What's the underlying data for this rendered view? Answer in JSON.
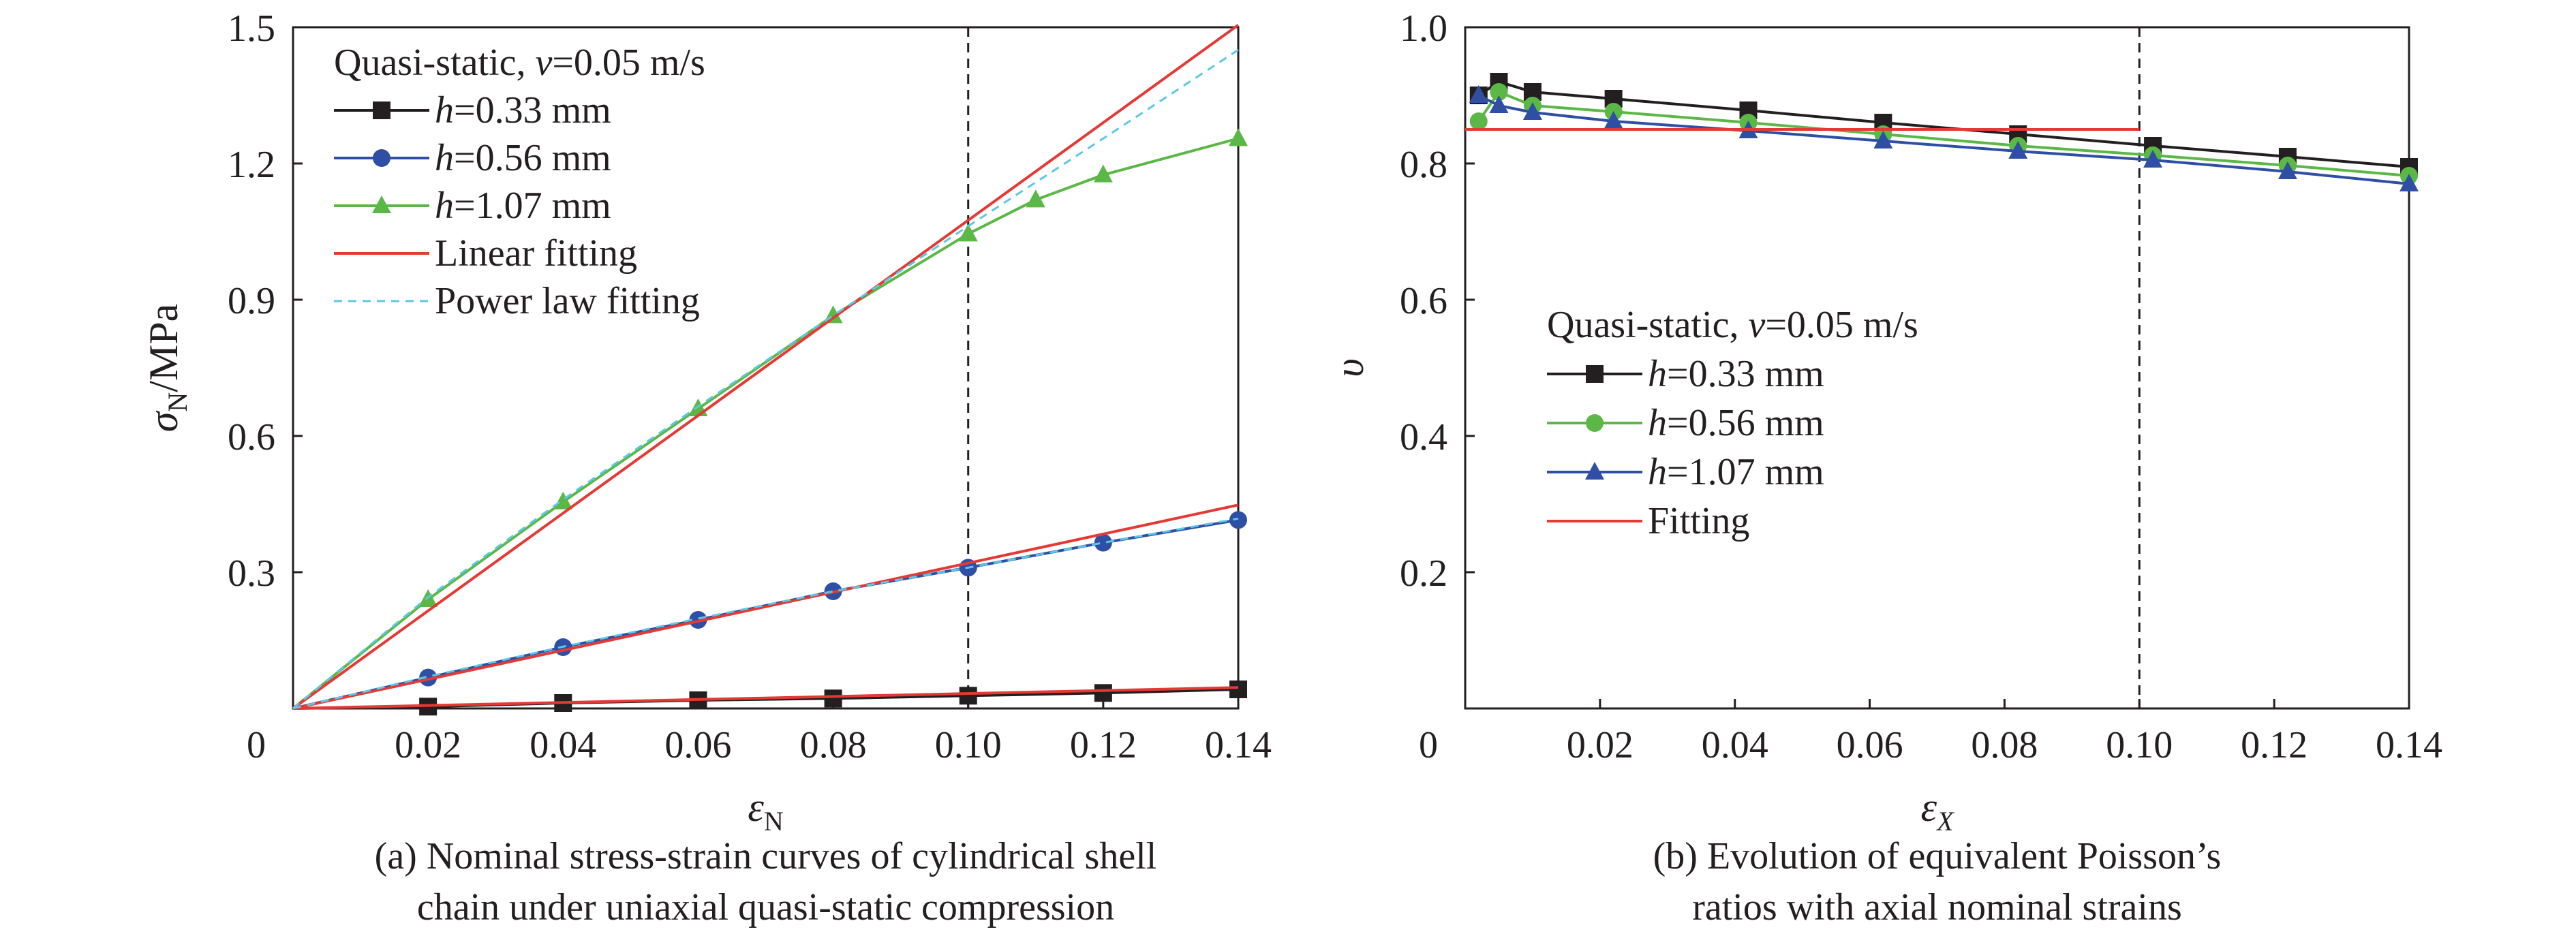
{
  "colors": {
    "black": "#231f20",
    "blue": "#2e4fa3",
    "green": "#5bb847",
    "red": "#e53935",
    "cyan": "#5bc8e6"
  },
  "chart_data": [
    {
      "type": "line",
      "caption_lines": [
        "(a) Nominal stress-strain curves of cylindrical shell",
        "chain under uniaxial quasi-static compression"
      ],
      "xlabel": {
        "main": "ε",
        "sub": "N"
      },
      "ylabel": {
        "main": "σ",
        "sub": "N",
        "rest": "/MPa"
      },
      "xlim": [
        0,
        0.14
      ],
      "ylim": [
        0,
        1.5
      ],
      "xticks": [
        0.02,
        0.04,
        0.06,
        0.08,
        0.1,
        0.12,
        0.14
      ],
      "xtick_labels": [
        "0.02",
        "0.04",
        "0.06",
        "0.08",
        "0.10",
        "0.12",
        "0.14"
      ],
      "yticks": [
        0.3,
        0.6,
        0.9,
        1.2,
        1.5
      ],
      "ytick_labels": [
        "0.3",
        "0.6",
        "0.9",
        "1.2",
        "1.5"
      ],
      "origin_label": "0",
      "vline_x": 0.1,
      "legend_title": {
        "prefix": "Quasi-static, ",
        "var": "v",
        "suffix": "=0.05 m/s"
      },
      "legend_position": "top-left",
      "series": [
        {
          "name": "h=0.33 mm",
          "label_var": "h",
          "label_rest": "=0.33 mm",
          "marker": "square",
          "color": "black",
          "x": [
            0,
            0.02,
            0.04,
            0.06,
            0.08,
            0.1,
            0.12,
            0.14
          ],
          "y": [
            0,
            0.004,
            0.012,
            0.018,
            0.022,
            0.028,
            0.034,
            0.042
          ]
        },
        {
          "name": "h=0.56 mm",
          "label_var": "h",
          "label_rest": "=0.56 mm",
          "marker": "circle",
          "color": "blue",
          "x": [
            0,
            0.02,
            0.04,
            0.06,
            0.08,
            0.1,
            0.12,
            0.14
          ],
          "y": [
            0,
            0.068,
            0.135,
            0.195,
            0.258,
            0.31,
            0.365,
            0.415
          ]
        },
        {
          "name": "h=1.07 mm",
          "label_var": "h",
          "label_rest": "=1.07 mm",
          "marker": "triangle",
          "color": "green",
          "x": [
            0,
            0.02,
            0.04,
            0.06,
            0.08,
            0.1,
            0.11,
            0.12,
            0.14
          ],
          "y": [
            0,
            0.24,
            0.455,
            0.66,
            0.865,
            1.045,
            1.12,
            1.175,
            1.255
          ]
        },
        {
          "name": "Linear fitting",
          "label_var": "",
          "label_rest": "Linear fitting",
          "marker": "none",
          "color": "red",
          "legend": true,
          "x": [
            0,
            0.14
          ],
          "y": [
            0,
            1.505
          ]
        },
        {
          "name": "Linear fitting 0.56",
          "marker": "none",
          "color": "red",
          "legend": false,
          "x": [
            0,
            0.14
          ],
          "y": [
            0,
            0.448
          ]
        },
        {
          "name": "Linear fitting 0.33",
          "marker": "none",
          "color": "red",
          "legend": false,
          "x": [
            0,
            0.14
          ],
          "y": [
            0,
            0.046
          ]
        },
        {
          "name": "Power law fitting",
          "label_var": "",
          "label_rest": "Power law fitting",
          "marker": "none",
          "color": "cyan",
          "dashed": true,
          "legend": true,
          "x": [
            0,
            0.02,
            0.04,
            0.06,
            0.08,
            0.1,
            0.12,
            0.14
          ],
          "y": [
            0,
            0.245,
            0.46,
            0.665,
            0.865,
            1.062,
            1.255,
            1.45
          ]
        },
        {
          "name": "Power law fitting 0.56",
          "marker": "none",
          "color": "cyan",
          "dashed": true,
          "legend": false,
          "x": [
            0,
            0.02,
            0.04,
            0.06,
            0.08,
            0.1,
            0.12,
            0.14
          ],
          "y": [
            0,
            0.07,
            0.136,
            0.198,
            0.258,
            0.31,
            0.365,
            0.418
          ]
        }
      ]
    },
    {
      "type": "line",
      "caption_lines": [
        "(b) Evolution of equivalent Poisson’s",
        "ratios with axial nominal strains"
      ],
      "xlabel": {
        "main": "ε",
        "sub": "X"
      },
      "ylabel": {
        "main": "υ",
        "sub": "",
        "rest": ""
      },
      "xlim": [
        0,
        0.14
      ],
      "ylim": [
        0,
        1.0
      ],
      "xticks": [
        0.02,
        0.04,
        0.06,
        0.08,
        0.1,
        0.12,
        0.14
      ],
      "xtick_labels": [
        "0.02",
        "0.04",
        "0.06",
        "0.08",
        "0.10",
        "0.12",
        "0.14"
      ],
      "yticks": [
        0.2,
        0.4,
        0.6,
        0.8,
        1.0
      ],
      "ytick_labels": [
        "0.2",
        "0.4",
        "0.6",
        "0.8",
        "1.0"
      ],
      "origin_label": "0",
      "vline_x": 0.1,
      "legend_title": {
        "prefix": "Quasi-static, ",
        "var": "v",
        "suffix": "=0.05 m/s"
      },
      "legend_position": "center",
      "series": [
        {
          "name": "h=0.33 mm",
          "label_var": "h",
          "label_rest": "=0.33 mm",
          "marker": "square",
          "color": "black",
          "x": [
            0.002,
            0.005,
            0.01,
            0.022,
            0.042,
            0.062,
            0.082,
            0.102,
            0.122,
            0.14
          ],
          "y": [
            0.9,
            0.92,
            0.905,
            0.895,
            0.878,
            0.86,
            0.843,
            0.826,
            0.81,
            0.795
          ]
        },
        {
          "name": "h=0.56 mm",
          "label_var": "h",
          "label_rest": "=0.56 mm",
          "marker": "circle",
          "color": "green",
          "x": [
            0.002,
            0.005,
            0.01,
            0.022,
            0.042,
            0.062,
            0.082,
            0.102,
            0.122,
            0.14
          ],
          "y": [
            0.862,
            0.905,
            0.885,
            0.876,
            0.86,
            0.843,
            0.826,
            0.812,
            0.797,
            0.782
          ]
        },
        {
          "name": "h=1.07 mm",
          "label_var": "h",
          "label_rest": "=1.07 mm",
          "marker": "triangle",
          "color": "blue",
          "x": [
            0.002,
            0.005,
            0.01,
            0.022,
            0.042,
            0.062,
            0.082,
            0.102,
            0.122,
            0.14
          ],
          "y": [
            0.9,
            0.885,
            0.875,
            0.862,
            0.848,
            0.833,
            0.818,
            0.805,
            0.788,
            0.77
          ]
        },
        {
          "name": "Fitting",
          "label_var": "",
          "label_rest": "Fitting",
          "marker": "none",
          "color": "red",
          "legend": true,
          "x": [
            0,
            0.1
          ],
          "y": [
            0.85,
            0.85
          ]
        }
      ]
    }
  ]
}
